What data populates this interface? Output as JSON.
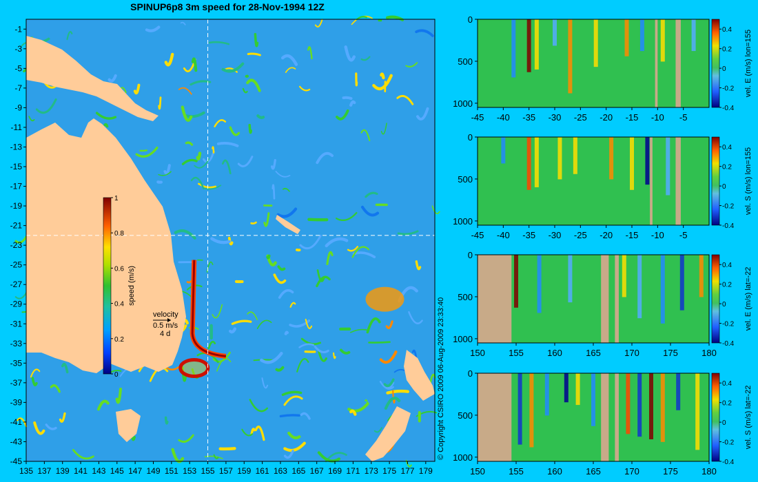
{
  "title": "SPINUP6p8 3m speed for 28-Nov-1994 12Z",
  "copyright": "© Copyright CSIRO 2009   06-Aug-2009 23:33:40",
  "colors": {
    "background": "#00ccff",
    "land": "#ffcc99",
    "section_land": "#c8aa88",
    "graticule": "#ffffff"
  },
  "chart_data": [
    {
      "type": "heatmap",
      "name": "surface-speed-map",
      "title": "SPINUP6p8 3m speed for 28-Nov-1994 12Z",
      "x_ticks": [
        "135",
        "137",
        "139",
        "141",
        "143",
        "145",
        "147",
        "149",
        "151",
        "153",
        "155",
        "157",
        "159",
        "161",
        "163",
        "165",
        "167",
        "169",
        "171",
        "173",
        "175",
        "177",
        "179"
      ],
      "y_ticks": [
        "-1",
        "-3",
        "-5",
        "-7",
        "-9",
        "-11",
        "-13",
        "-15",
        "-17",
        "-19",
        "-21",
        "-23",
        "-25",
        "-27",
        "-29",
        "-31",
        "-33",
        "-35",
        "-37",
        "-39",
        "-41",
        "-43",
        "-45"
      ],
      "xlim": [
        135,
        180
      ],
      "ylim": [
        -45,
        0
      ],
      "section_lines": {
        "lon": 155,
        "lat": -22
      },
      "colorbar": {
        "label": "speed (m/s)",
        "range": [
          0,
          1
        ],
        "ticks": [
          "1",
          "0.8",
          "0.6",
          "0.4",
          "0.2",
          "0"
        ]
      },
      "velocity_key": {
        "label": "velocity",
        "speed": "0.5 m/s",
        "scale": "4 d"
      }
    },
    {
      "type": "heatmap",
      "name": "section-u-lon155",
      "colorbar_label": "vel. E (m/s) lon=155",
      "x_ticks": [
        "-45",
        "-40",
        "-35",
        "-30",
        "-25",
        "-20",
        "-15",
        "-10",
        "-5"
      ],
      "y_ticks": [
        "0",
        "500",
        "1000"
      ],
      "xlim": [
        -45,
        0
      ],
      "ylim": [
        1050,
        0
      ],
      "colorbar_range": [
        -0.4,
        0.5
      ],
      "colorbar_ticks": [
        "0.4",
        "0.2",
        "0",
        "-0.2",
        "-0.4"
      ]
    },
    {
      "type": "heatmap",
      "name": "section-v-lon155",
      "colorbar_label": "vel. S (m/s) lon=155",
      "x_ticks": [
        "-45",
        "-40",
        "-35",
        "-30",
        "-25",
        "-20",
        "-15",
        "-10",
        "-5"
      ],
      "y_ticks": [
        "0",
        "500",
        "1000"
      ],
      "xlim": [
        -45,
        0
      ],
      "ylim": [
        1050,
        0
      ],
      "colorbar_range": [
        -0.4,
        0.5
      ],
      "colorbar_ticks": [
        "0.4",
        "0.2",
        "0",
        "-0.2",
        "-0.4"
      ]
    },
    {
      "type": "heatmap",
      "name": "section-u-lat-22",
      "colorbar_label": "vel. E (m/s) lat=-22",
      "x_ticks": [
        "150",
        "155",
        "160",
        "165",
        "170",
        "175",
        "180"
      ],
      "y_ticks": [
        "0",
        "500",
        "1000"
      ],
      "xlim": [
        150,
        180
      ],
      "ylim": [
        1050,
        0
      ],
      "colorbar_range": [
        -0.4,
        0.5
      ],
      "colorbar_ticks": [
        "0.4",
        "0.2",
        "0",
        "-0.2",
        "-0.4"
      ]
    },
    {
      "type": "heatmap",
      "name": "section-v-lat-22",
      "colorbar_label": "vel. S (m/s) lat=-22",
      "x_ticks": [
        "150",
        "155",
        "160",
        "165",
        "170",
        "175",
        "180"
      ],
      "y_ticks": [
        "0",
        "500",
        "1000"
      ],
      "xlim": [
        150,
        180
      ],
      "ylim": [
        1050,
        0
      ],
      "colorbar_range": [
        -0.4,
        0.5
      ],
      "colorbar_ticks": [
        "0.4",
        "0.2",
        "0",
        "-0.2",
        "-0.4"
      ]
    }
  ]
}
